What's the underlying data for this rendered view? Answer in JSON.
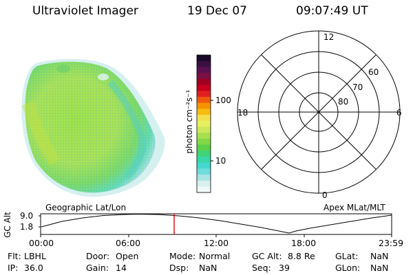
{
  "header": {
    "instrument": "Ultraviolet Imager",
    "date": "19 Dec 07",
    "time": "09:07:49 UT"
  },
  "colorbar": {
    "unit_label": "photon cm⁻²s⁻¹",
    "tick_labels": [
      "100",
      "10"
    ],
    "colors": [
      "#1a0a2a",
      "#3a1040",
      "#5a1050",
      "#7a1044",
      "#a00020",
      "#c8001c",
      "#e02020",
      "#f05a10",
      "#f49400",
      "#f6bc10",
      "#f2e050",
      "#e8f060",
      "#cce85c",
      "#a8e050",
      "#82d848",
      "#5cd048",
      "#40d478",
      "#38d8a8",
      "#44d8d0",
      "#70dcdc",
      "#a8e4e4",
      "#d8f0f0",
      "#f0f8f8"
    ]
  },
  "image_panel": {
    "label": "Geographic Lat/Lon"
  },
  "polar_panel": {
    "label": "Apex MLat/MLT",
    "mlt_labels": {
      "top": "12",
      "bottom": "0",
      "left": "18",
      "right": "6"
    },
    "lat_labels": [
      "60",
      "70",
      "80"
    ]
  },
  "altitude_plot": {
    "ylabel": "GC Alt",
    "y_ticks": [
      "9.0",
      "1.8"
    ],
    "x_ticks": [
      "00:00",
      "06:00",
      "12:00",
      "18:00",
      "23:59"
    ],
    "marker_time": "09:07:49"
  },
  "info": {
    "rows": [
      [
        {
          "key": "Flt:",
          "val": "LBHL"
        },
        {
          "key": "Door:",
          "val": "Open"
        },
        {
          "key": "Mode:",
          "val": "Normal"
        },
        {
          "key": "GC Alt:",
          "val": "8.8 Re"
        },
        {
          "key": "GLat:",
          "val": "NaN"
        }
      ],
      [
        {
          "key": "IP:",
          "val": "36.0"
        },
        {
          "key": "Gain:",
          "val": "14"
        },
        {
          "key": "Dsp:",
          "val": "NaN"
        },
        {
          "key": "Seq:",
          "val": "39"
        },
        {
          "key": "GLon:",
          "val": "NaN"
        }
      ]
    ]
  }
}
